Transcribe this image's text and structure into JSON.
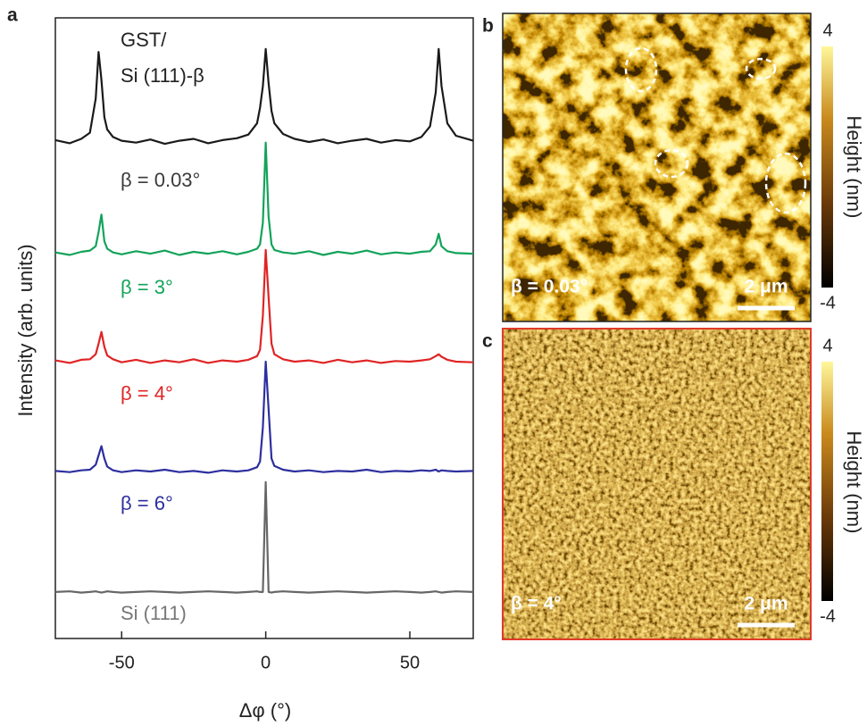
{
  "chart_data": {
    "type": "line",
    "letter": "a",
    "xlabel": "Δφ (°)",
    "ylabel": "Intensity (arb. units)",
    "annotation": [
      "GST/",
      "Si (111)-β"
    ],
    "xlim": [
      -73,
      72
    ],
    "xticks": [
      -50,
      0,
      50
    ],
    "ylim": [
      0,
      100
    ],
    "x": [
      -73,
      -68,
      -64,
      -61,
      -59,
      -58,
      -57,
      -56,
      -55,
      -53,
      -50,
      -45,
      -40,
      -35,
      -30,
      -25,
      -20,
      -15,
      -10,
      -6,
      -3,
      -2,
      -1,
      0,
      1,
      2,
      3,
      6,
      10,
      15,
      20,
      25,
      30,
      35,
      40,
      45,
      50,
      54,
      57,
      59,
      60,
      61,
      63,
      66,
      72
    ],
    "series": [
      {
        "name": "β = 0.03°",
        "color": "#1a1a1a",
        "label_color": "#3a3a3a",
        "values": [
          80.3,
          79.8,
          80.5,
          81.5,
          87,
          94.5,
          90,
          84,
          82,
          80.8,
          80.2,
          79.9,
          80.4,
          79.7,
          80.2,
          80.5,
          79.8,
          80.3,
          80.6,
          81.2,
          83,
          85.5,
          89,
          95,
          89.5,
          85,
          83,
          81.3,
          80.5,
          80,
          80.4,
          79.8,
          80.2,
          80.5,
          79.9,
          80.3,
          80.1,
          80.8,
          82.5,
          88,
          95,
          89,
          83,
          81,
          80.2
        ]
      },
      {
        "name": "β = 3°",
        "color": "#12a35a",
        "values": [
          62.2,
          61.8,
          62.3,
          62.5,
          63.2,
          65.5,
          68.3,
          64,
          62.8,
          62.2,
          61.9,
          62.4,
          62,
          62.5,
          61.8,
          62.3,
          62,
          62.4,
          61.9,
          62.3,
          62.8,
          63.5,
          67,
          79.9,
          68,
          63.5,
          62.6,
          62.2,
          62,
          62.4,
          61.8,
          62.3,
          62,
          62.5,
          61.9,
          62.2,
          62,
          62.3,
          62.4,
          63.5,
          65.2,
          63.2,
          62.4,
          62.1,
          62
        ]
      },
      {
        "name": "β = 4°",
        "color": "#e02424",
        "values": [
          44.8,
          44.4,
          44.9,
          45,
          45.8,
          47.5,
          49.4,
          47,
          45.6,
          45,
          44.5,
          44.9,
          44.4,
          44.8,
          44.5,
          45,
          44.4,
          44.8,
          44.6,
          44.9,
          45.5,
          46.5,
          52,
          62.6,
          55,
          47.5,
          45.8,
          45,
          44.6,
          44.8,
          44.4,
          44.9,
          44.5,
          44.8,
          44.4,
          44.7,
          44.6,
          44.8,
          45,
          45.5,
          45.8,
          45.4,
          44.9,
          44.6,
          44.5
        ]
      },
      {
        "name": "β = 6°",
        "color": "#2d2f9e",
        "values": [
          27,
          26.8,
          27.1,
          27.2,
          28,
          29.5,
          31,
          29,
          27.7,
          27.1,
          26.8,
          27.1,
          26.9,
          27.2,
          26.8,
          27,
          26.7,
          27.1,
          26.9,
          27.1,
          27.6,
          28.5,
          34,
          44.6,
          37,
          29,
          27.8,
          27.2,
          26.9,
          27.1,
          26.8,
          27,
          26.9,
          27.2,
          26.8,
          27,
          26.9,
          27.1,
          27,
          27.2,
          26.9,
          27.1,
          27,
          26.9,
          27
        ]
      },
      {
        "name": "Si (111)",
        "color": "#666666",
        "label_color": "#777777",
        "values": [
          7.5,
          7.6,
          7.4,
          7.5,
          7.6,
          7.5,
          7.4,
          7.5,
          7.6,
          7.5,
          7.4,
          7.5,
          7.6,
          7.5,
          7.4,
          7.5,
          7.6,
          7.5,
          7.4,
          7.5,
          7.6,
          7.5,
          7.5,
          25.2,
          7.5,
          7.4,
          7.5,
          7.6,
          7.5,
          7.4,
          7.5,
          7.6,
          7.5,
          7.4,
          7.5,
          7.6,
          7.5,
          7.4,
          7.5,
          7.6,
          7.5,
          7.4,
          7.5,
          7.6,
          7.5
        ]
      }
    ]
  },
  "panels": [
    {
      "letter": "b",
      "label": "β = 0.03°",
      "scale_bar": "2 μm",
      "colorbar": {
        "label": "Height (nm)",
        "lim": [
          -4,
          4
        ],
        "ticks": [
          -4,
          4
        ]
      }
    },
    {
      "letter": "c",
      "label": "β = 4°",
      "scale_bar": "2 μm",
      "colorbar": {
        "label": "Height (nm)",
        "lim": [
          -4,
          4
        ],
        "ticks": [
          -4,
          4
        ]
      }
    }
  ]
}
